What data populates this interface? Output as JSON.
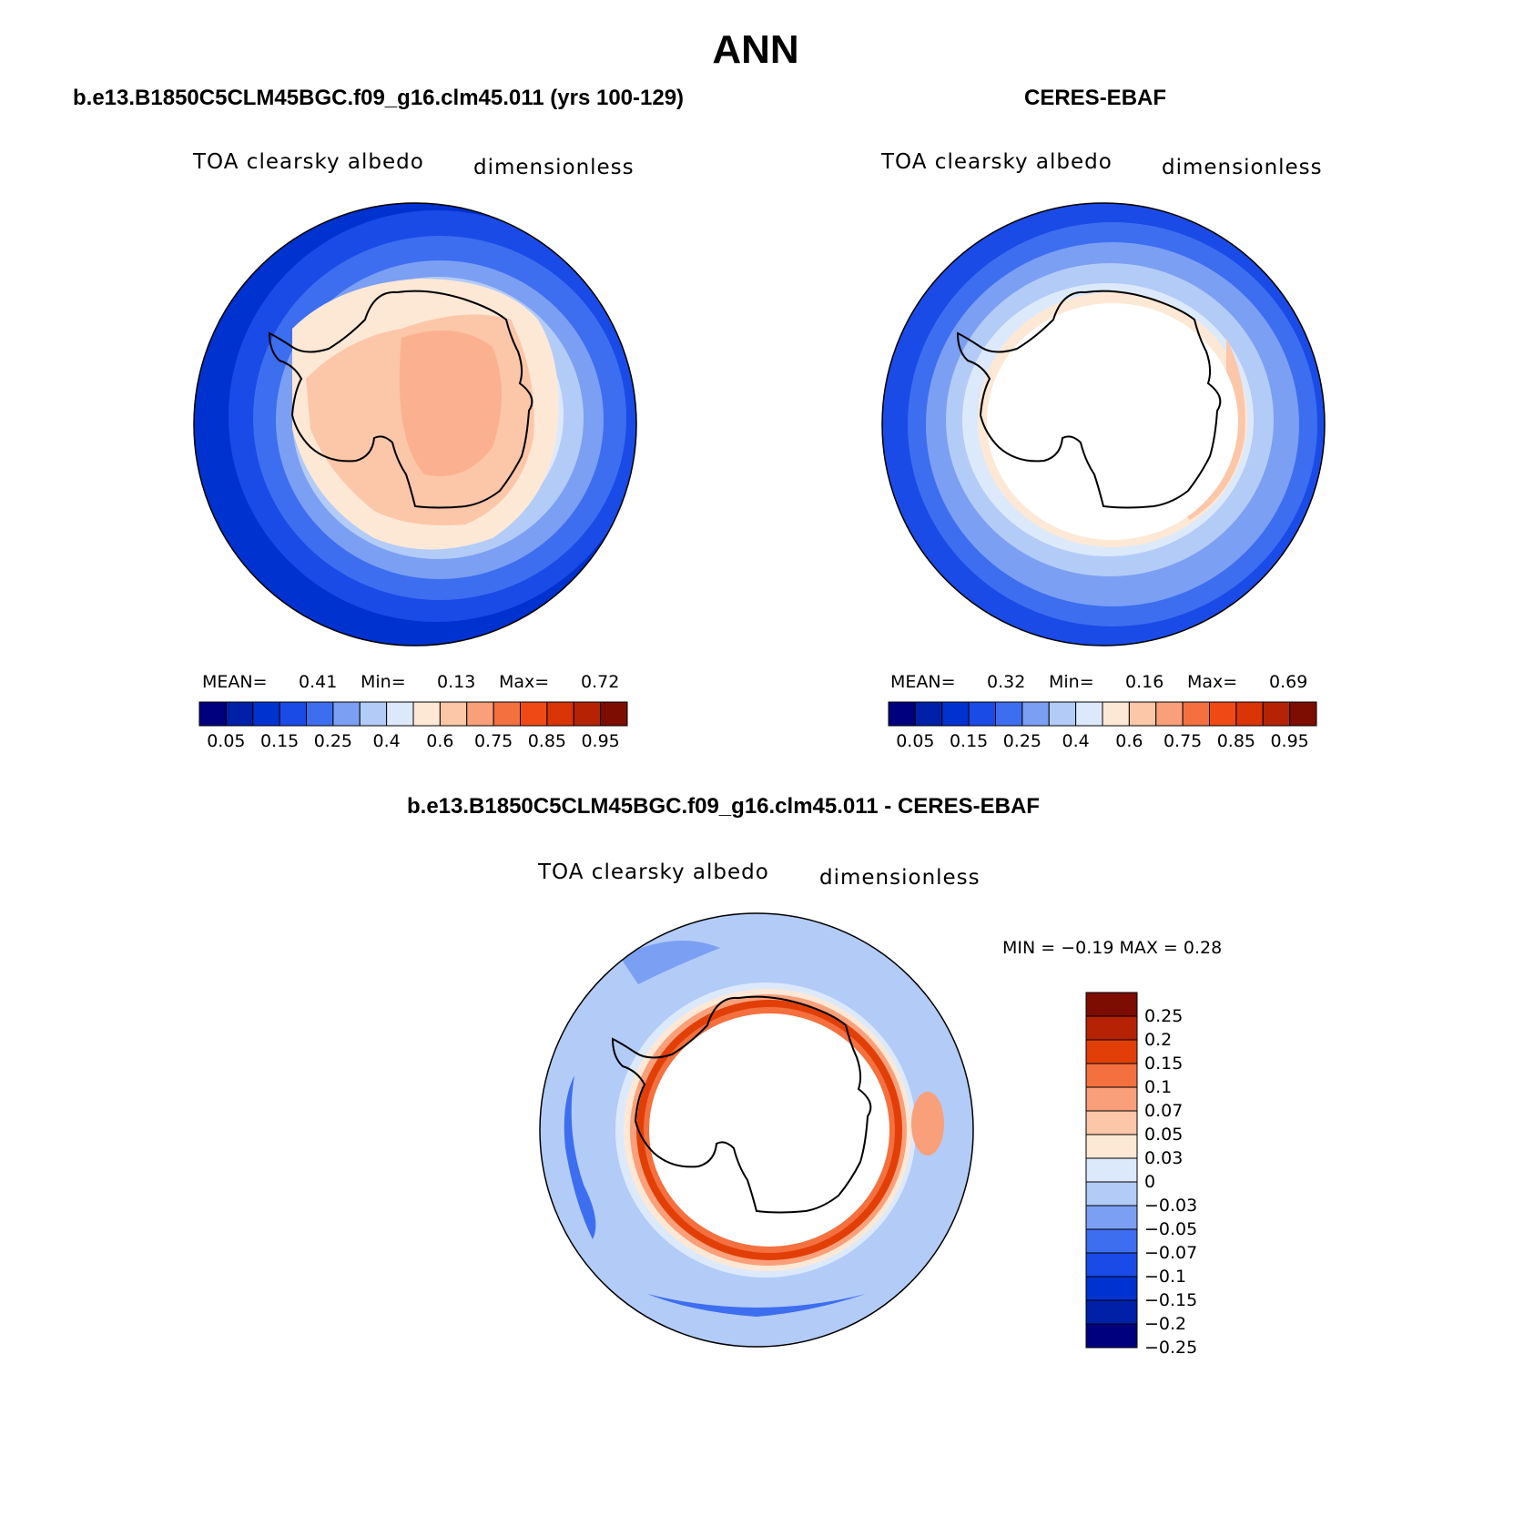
{
  "title": "ANN",
  "panels": [
    {
      "case_title": "b.e13.B1850C5CLM45BGC.f09_g16.clm45.011 (yrs 100-129)",
      "variable": "TOA clearsky albedo",
      "units": "dimensionless",
      "mean_label": "MEAN=",
      "mean": "0.41",
      "min_label": "Min=",
      "min": "0.13",
      "max_label": "Max=",
      "max": "0.72"
    },
    {
      "case_title": "CERES-EBAF",
      "variable": "TOA clearsky albedo",
      "units": "dimensionless",
      "mean_label": "MEAN=",
      "mean": "0.32",
      "min_label": "Min=",
      "min": "0.16",
      "max_label": "Max=",
      "max": "0.69"
    }
  ],
  "diff_panel": {
    "case_title": "b.e13.B1850C5CLM45BGC.f09_g16.clm45.011 - CERES-EBAF",
    "variable": "TOA clearsky albedo",
    "units": "dimensionless",
    "minmax_text": "MIN =  −0.19 MAX =   0.28"
  },
  "colorbar_abs": {
    "colors": [
      "#00007f",
      "#0020a8",
      "#0032d0",
      "#1a4be6",
      "#3d6ef0",
      "#7b9ff2",
      "#b3cbf7",
      "#dce9fb",
      "#fde8d6",
      "#fcc6a8",
      "#f9a07a",
      "#f4703f",
      "#ef4a16",
      "#d93506",
      "#b52304",
      "#7d0d02"
    ],
    "tick_labels": [
      "0.05",
      "0.15",
      "0.25",
      "0.4",
      "0.6",
      "0.75",
      "0.85",
      "0.95"
    ]
  },
  "colorbar_diff": {
    "colors": [
      "#7d0d02",
      "#b52304",
      "#e23f08",
      "#f4703f",
      "#f9a07a",
      "#fcc6a8",
      "#fde8d6",
      "#dce9fb",
      "#b3cbf7",
      "#7b9ff2",
      "#3d6ef0",
      "#1a4be6",
      "#0032d0",
      "#0020a8",
      "#00007f"
    ],
    "tick_labels": [
      "0.25",
      "0.2",
      "0.15",
      "0.1",
      "0.07",
      "0.05",
      "0.03",
      "0",
      "−0.03",
      "−0.05",
      "−0.07",
      "−0.1",
      "−0.15",
      "−0.2",
      "−0.25"
    ]
  }
}
